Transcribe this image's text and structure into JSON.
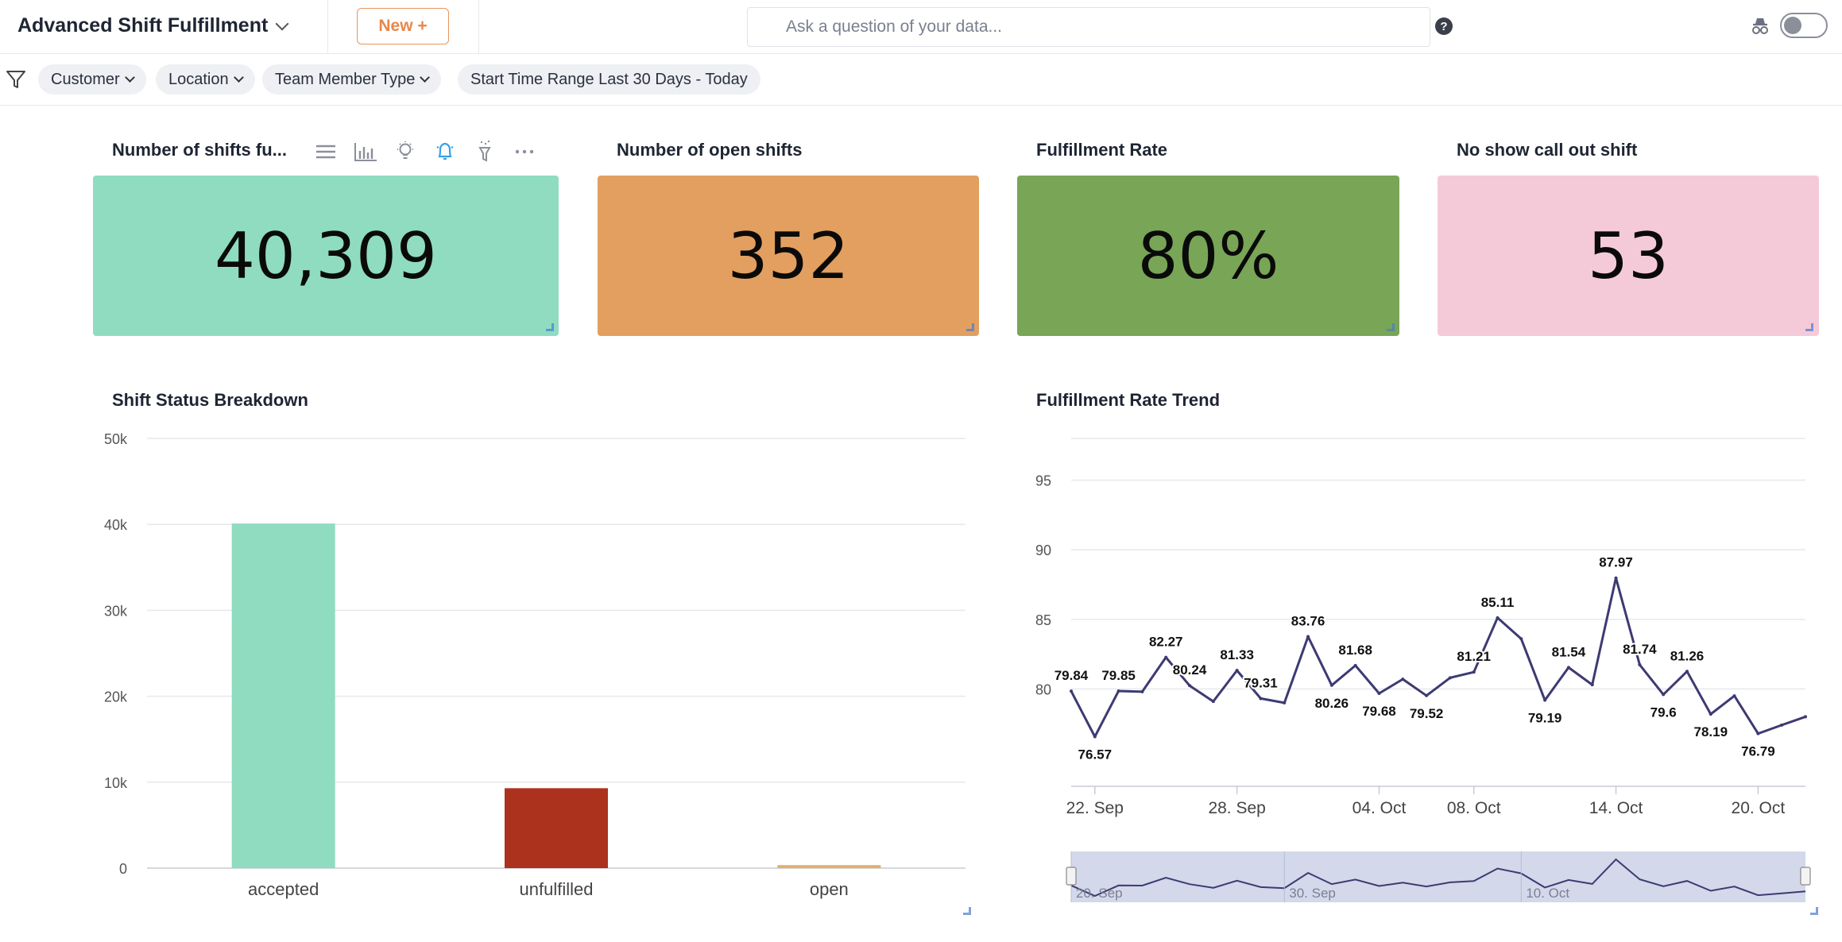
{
  "header": {
    "title": "Advanced Shift Fulfillment",
    "new_button": "New +",
    "search_placeholder": "Ask a question of your data...",
    "help": "?"
  },
  "filters": [
    {
      "label": "Customer"
    },
    {
      "label": "Location"
    },
    {
      "label": "Team Member Type"
    },
    {
      "label": "Start Time Range Last 30 Days - Today"
    }
  ],
  "kpis": [
    {
      "title": "Number of shifts fu...",
      "value": "40,309",
      "color": "#8fdcc0"
    },
    {
      "title": "Number of open shifts",
      "value": "352",
      "color": "#e29f5f"
    },
    {
      "title": "Fulfillment Rate",
      "value": "80%",
      "color": "#79a556"
    },
    {
      "title": "No show call out shift",
      "value": "53",
      "color": "#f5cad8"
    }
  ],
  "chart_data": [
    {
      "type": "bar",
      "title": "Shift Status Breakdown",
      "categories": [
        "accepted",
        "unfulfilled",
        "open"
      ],
      "values": [
        40100,
        9300,
        352
      ],
      "colors": [
        "#8fdcc0",
        "#ad321d",
        "#e2b06a"
      ],
      "ylim": [
        0,
        50000
      ],
      "yticks": [
        "0",
        "10k",
        "20k",
        "30k",
        "40k",
        "50k"
      ],
      "grid": true
    },
    {
      "type": "line",
      "title": "Fulfillment Rate Trend",
      "color": "#3d3a72",
      "ylim": [
        73,
        98
      ],
      "yticks": [
        80,
        85,
        90,
        95
      ],
      "xticks": [
        "22. Sep",
        "28. Sep",
        "04. Oct",
        "08. Oct",
        "14. Oct",
        "20. Oct"
      ],
      "x": [
        "2024-09-21",
        "2024-09-22",
        "2024-09-23",
        "2024-09-24",
        "2024-09-25",
        "2024-09-26",
        "2024-09-27",
        "2024-09-28",
        "2024-09-29",
        "2024-09-30",
        "2024-10-01",
        "2024-10-02",
        "2024-10-03",
        "2024-10-04",
        "2024-10-05",
        "2024-10-06",
        "2024-10-07",
        "2024-10-08",
        "2024-10-09",
        "2024-10-10",
        "2024-10-11",
        "2024-10-12",
        "2024-10-13",
        "2024-10-14",
        "2024-10-15",
        "2024-10-16",
        "2024-10-17",
        "2024-10-18",
        "2024-10-19",
        "2024-10-20",
        "2024-10-21",
        "2024-10-22"
      ],
      "values": [
        79.84,
        76.57,
        79.85,
        79.8,
        82.27,
        80.24,
        79.1,
        81.33,
        79.31,
        79.0,
        83.76,
        80.26,
        81.68,
        79.68,
        80.7,
        79.52,
        80.8,
        81.21,
        85.11,
        83.6,
        79.19,
        81.54,
        80.3,
        87.97,
        81.74,
        79.6,
        81.26,
        78.19,
        79.5,
        76.79,
        77.4,
        78.0
      ],
      "point_labels": {
        "0": "79.84",
        "1": "76.57",
        "2": "79.85",
        "4": "82.27",
        "5": "80.24",
        "7": "81.33",
        "8": "79.31",
        "10": "83.76",
        "11": "80.26",
        "12": "81.68",
        "13": "79.68",
        "15": "79.52",
        "17": "81.21",
        "18": "85.11",
        "20": "79.19",
        "21": "81.54",
        "23": "87.97",
        "24": "81.74",
        "25": "79.6",
        "26": "81.26",
        "27": "78.19",
        "29": "76.79"
      },
      "grid": true,
      "navigator_labels": [
        "20. Sep",
        "30. Sep",
        "10. Oct"
      ]
    }
  ]
}
